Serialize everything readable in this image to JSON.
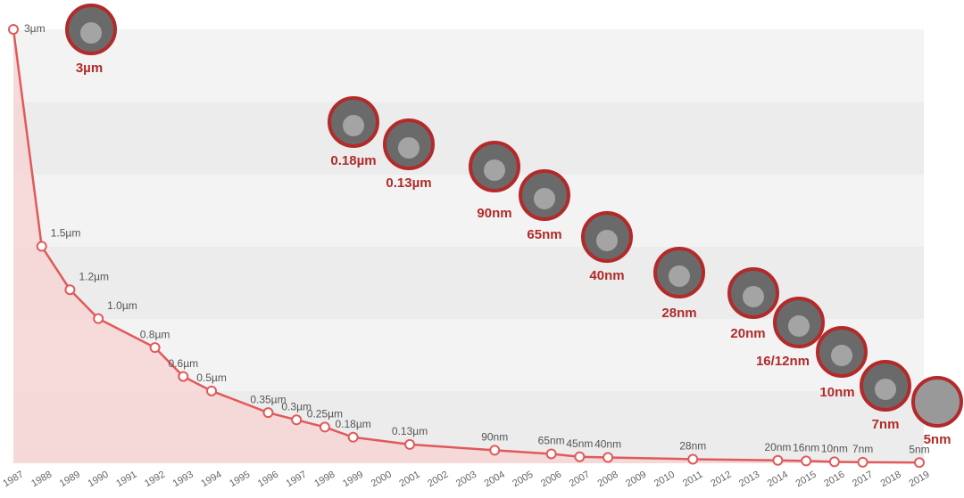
{
  "chart_data": {
    "type": "line",
    "color": "#e05a5a",
    "x": [
      1987,
      1988,
      1989,
      1990,
      1992,
      1993,
      1994,
      1996,
      1997,
      1998,
      1999,
      2001,
      2004,
      2006,
      2007,
      2008,
      2011,
      2014,
      2015,
      2016,
      2017,
      2019
    ],
    "values": [
      3000,
      1500,
      1200,
      1000,
      800,
      600,
      500,
      350,
      300,
      250,
      180,
      130,
      90,
      65,
      45,
      40,
      28,
      20,
      16,
      10,
      7,
      5
    ],
    "value_labels": [
      "3µm",
      "1.5µm",
      "1.2µm",
      "1.0µm",
      "0.8µm",
      "0.6µm",
      "0.5µm",
      "0.35µm",
      "0.3µm",
      "0.25µm",
      "0.18µm",
      "0.13µm",
      "90nm",
      "65nm",
      "45nm",
      "40nm",
      "28nm",
      "20nm",
      "16nm",
      "10nm",
      "7nm",
      "5nm"
    ],
    "xlim": [
      1987,
      2019
    ],
    "xticks": [
      1987,
      1988,
      1989,
      1990,
      1991,
      1992,
      1993,
      1994,
      1995,
      1996,
      1997,
      1998,
      1999,
      2000,
      2001,
      2002,
      2003,
      2004,
      2005,
      2006,
      2007,
      2008,
      2009,
      2010,
      2011,
      2012,
      2013,
      2014,
      2015,
      2016,
      2017,
      2018,
      2019
    ],
    "ylim": [
      0,
      3000
    ],
    "annotations": [
      "3µm",
      "0.18µm",
      "0.13µm",
      "90nm",
      "65nm",
      "40nm",
      "28nm",
      "20nm",
      "16/12nm",
      "10nm",
      "7nm",
      "5nm"
    ]
  }
}
